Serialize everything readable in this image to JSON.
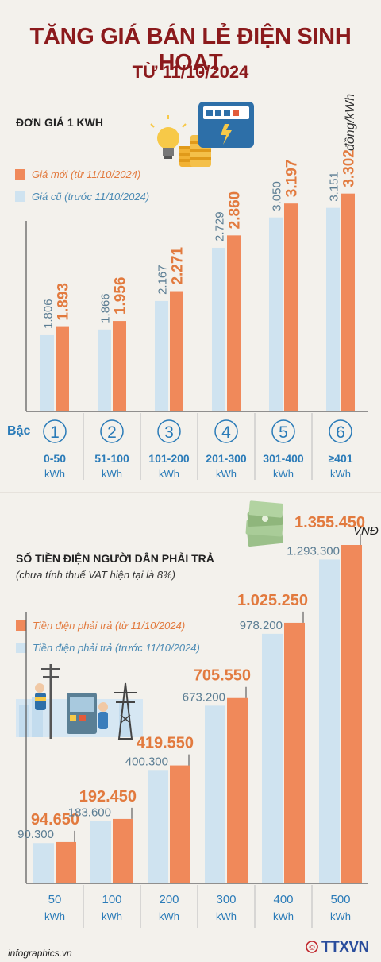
{
  "header": {
    "title": "TĂNG GIÁ BÁN LẺ ĐIỆN SINH HOẠT",
    "subtitle": "TỪ 11/10/2024"
  },
  "colors": {
    "title": "#8b1a1c",
    "new": "#f0895a",
    "new_text": "#e27a3e",
    "old": "#cfe3f0",
    "old_text": "#5b7d93",
    "tier_blue": "#2a7bb8"
  },
  "chart_data": [
    {
      "type": "bar",
      "title": "ĐƠN GIÁ 1 KWH",
      "unit": "đồng/kWh",
      "categories": [
        "1",
        "2",
        "3",
        "4",
        "5",
        "6"
      ],
      "category_ranges": [
        "0-50",
        "51-100",
        "101-200",
        "201-300",
        "301-400",
        "≥401"
      ],
      "category_unit": "kWh",
      "series": [
        {
          "name": "Giá mới (từ 11/10/2024)",
          "values": [
            1893,
            1956,
            2271,
            2860,
            3197,
            3302
          ],
          "labels": [
            "1.893",
            "1.956",
            "2.271",
            "2.860",
            "3.197",
            "3.302"
          ]
        },
        {
          "name": "Giá cũ (trước 11/10/2024)",
          "values": [
            1806,
            1866,
            2167,
            2729,
            3050,
            3151
          ],
          "labels": [
            "1.806",
            "1.866",
            "2.167",
            "2.729",
            "3.050",
            "3.151"
          ]
        }
      ]
    },
    {
      "type": "bar",
      "title": "SỐ TIỀN ĐIỆN NGƯỜI DÂN PHẢI TRẢ",
      "note": "(chưa tính thuế VAT hiện tại là 8%)",
      "unit": "VNĐ",
      "categories": [
        "50",
        "100",
        "200",
        "300",
        "400",
        "500"
      ],
      "category_unit": "kWh",
      "series": [
        {
          "name": "Tiền điện phải trả (từ 11/10/2024)",
          "values": [
            94650,
            192450,
            419550,
            705550,
            1025250,
            1355450
          ],
          "labels": [
            "94.650",
            "192.450",
            "419.550",
            "705.550",
            "1.025.250",
            "1.355.450"
          ]
        },
        {
          "name": "Tiền điện phải trả (trước 11/10/2024)",
          "values": [
            90300,
            183600,
            400300,
            673200,
            978200,
            1293300
          ],
          "labels": [
            "90.300",
            "183.600",
            "400.300",
            "673.200",
            "978.200",
            "1.293.300"
          ]
        }
      ]
    }
  ],
  "tier": {
    "label": "Bậc"
  },
  "footer": {
    "site": "infographics.vn",
    "copyright": "©",
    "agency": "TTXVN"
  },
  "icons": [
    "light-bulb-icon",
    "coins-icon",
    "electric-meter-icon",
    "money-stack-icon",
    "electrician-illustration",
    "power-tower-icon"
  ]
}
